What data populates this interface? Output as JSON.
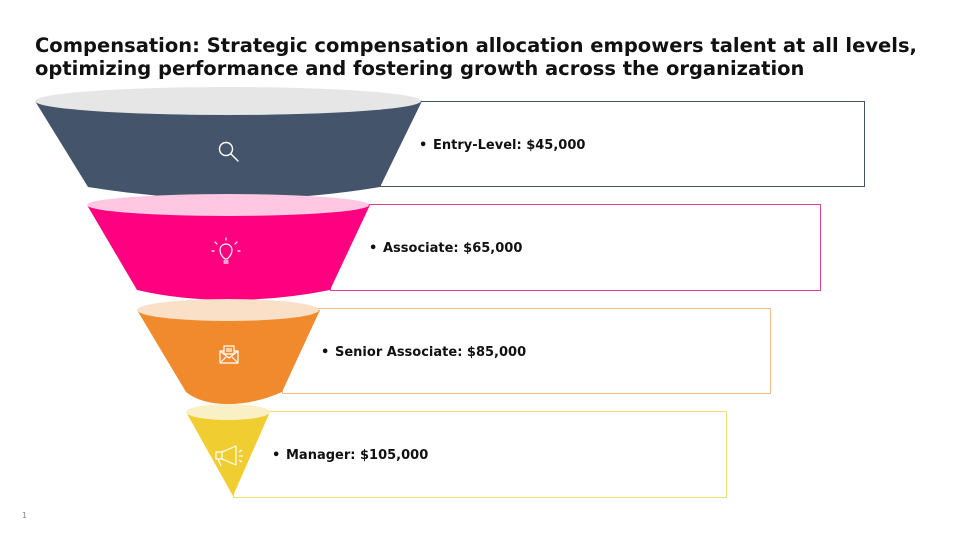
{
  "title": "Compensation: Strategic compensation allocation empowers talent at all levels, optimizing performance and fostering growth across the organization",
  "slide_number": "1",
  "levels": [
    {
      "label": "Entry-Level: $45,000",
      "color": "#44546A",
      "rim": "#E6E6E6",
      "icon": "search-icon"
    },
    {
      "label": "Associate: $65,000",
      "color": "#FF0080",
      "rim": "#FFC7E2",
      "icon": "lightbulb-icon"
    },
    {
      "label": "Senior Associate: $85,000",
      "color": "#F08A2C",
      "rim": "#FBE0C8",
      "icon": "envelope-icon"
    },
    {
      "label": "Manager: $105,000",
      "color": "#F0CE31",
      "rim": "#FAF0C5",
      "icon": "megaphone-icon"
    }
  ]
}
